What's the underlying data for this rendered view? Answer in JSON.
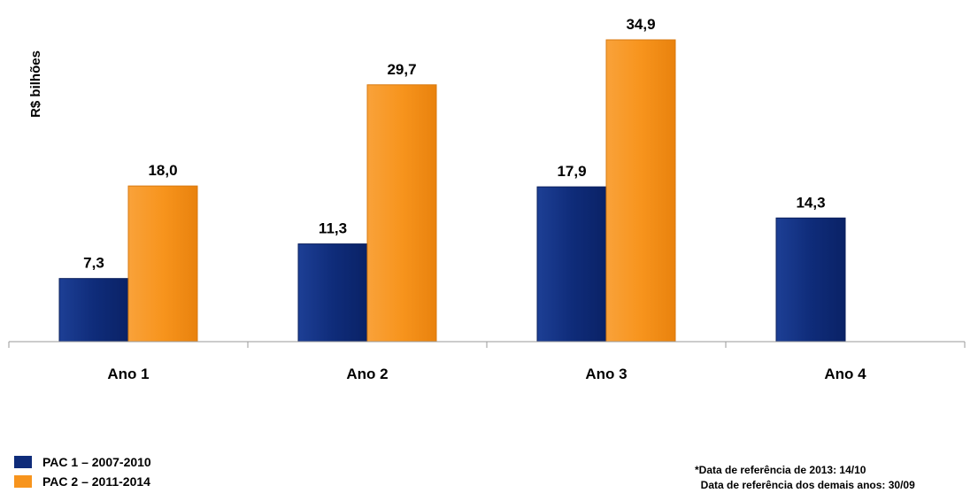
{
  "chart_data": {
    "type": "bar",
    "ylabel": "R$ bilhões",
    "xlabel": "",
    "title": "",
    "categories": [
      "Ano 1",
      "Ano 2",
      "Ano 3",
      "Ano 4"
    ],
    "ylim": [
      0,
      34.9
    ],
    "grid": false,
    "legend_position": "bottom-left",
    "series": [
      {
        "name": "PAC 1 – 2007-2010",
        "color": "#0F2C7A",
        "values": [
          7.3,
          11.3,
          17.9,
          14.3
        ],
        "labels": [
          "7,3",
          "11,3",
          "17,9",
          "14,3"
        ]
      },
      {
        "name": "PAC 2 – 2011-2014",
        "color": "#F7941D",
        "values": [
          18.0,
          29.7,
          34.9,
          null
        ],
        "labels": [
          "18,0",
          "29,7",
          "34,9",
          ""
        ]
      }
    ]
  },
  "legend": {
    "items": [
      {
        "label": "PAC 1 – 2007-2010",
        "color": "#0F2C7A"
      },
      {
        "label": "PAC 2 – 2011-2014",
        "color": "#F7941D"
      }
    ]
  },
  "footnote": {
    "line1": "*Data de referência de 2013: 14/10",
    "line2": "  Data de referência dos demais anos: 30/09"
  }
}
